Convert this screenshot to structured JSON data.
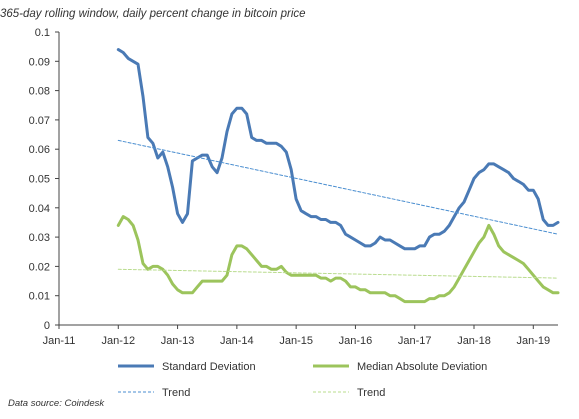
{
  "title": "365-day rolling window, daily percent change in bitcoin price",
  "source": "Data source: Coindesk",
  "chart_data": {
    "type": "line",
    "title": "365-day rolling window, daily percent change in bitcoin price",
    "xlabel": "",
    "ylabel": "",
    "x_ticks": [
      "Jan-11",
      "Jan-12",
      "Jan-13",
      "Jan-14",
      "Jan-15",
      "Jan-16",
      "Jan-17",
      "Jan-18",
      "Jan-19"
    ],
    "y_ticks": [
      "0",
      "0.01",
      "0.02",
      "0.03",
      "0.04",
      "0.05",
      "0.06",
      "0.07",
      "0.08",
      "0.09",
      "0.1"
    ],
    "ylim": [
      0,
      0.1
    ],
    "xlim": [
      "2011-01",
      "2019-06"
    ],
    "grid": false,
    "legend_position": "bottom",
    "series": [
      {
        "name": "Standard Deviation",
        "color": "#4a7ab5",
        "style": "solid",
        "points": [
          [
            "2012-01",
            0.094
          ],
          [
            "2012-02",
            0.093
          ],
          [
            "2012-03",
            0.091
          ],
          [
            "2012-04",
            0.09
          ],
          [
            "2012-05",
            0.089
          ],
          [
            "2012-06",
            0.078
          ],
          [
            "2012-07",
            0.064
          ],
          [
            "2012-08",
            0.062
          ],
          [
            "2012-09",
            0.057
          ],
          [
            "2012-10",
            0.059
          ],
          [
            "2012-11",
            0.054
          ],
          [
            "2012-12",
            0.047
          ],
          [
            "2013-01",
            0.038
          ],
          [
            "2013-02",
            0.035
          ],
          [
            "2013-03",
            0.038
          ],
          [
            "2013-04",
            0.056
          ],
          [
            "2013-05",
            0.057
          ],
          [
            "2013-06",
            0.058
          ],
          [
            "2013-07",
            0.058
          ],
          [
            "2013-08",
            0.054
          ],
          [
            "2013-09",
            0.052
          ],
          [
            "2013-10",
            0.057
          ],
          [
            "2013-11",
            0.066
          ],
          [
            "2013-12",
            0.072
          ],
          [
            "2014-01",
            0.074
          ],
          [
            "2014-02",
            0.074
          ],
          [
            "2014-03",
            0.072
          ],
          [
            "2014-04",
            0.064
          ],
          [
            "2014-05",
            0.063
          ],
          [
            "2014-06",
            0.063
          ],
          [
            "2014-07",
            0.062
          ],
          [
            "2014-08",
            0.062
          ],
          [
            "2014-09",
            0.062
          ],
          [
            "2014-10",
            0.061
          ],
          [
            "2014-11",
            0.059
          ],
          [
            "2014-12",
            0.053
          ],
          [
            "2015-01",
            0.043
          ],
          [
            "2015-02",
            0.039
          ],
          [
            "2015-03",
            0.038
          ],
          [
            "2015-04",
            0.037
          ],
          [
            "2015-05",
            0.037
          ],
          [
            "2015-06",
            0.036
          ],
          [
            "2015-07",
            0.036
          ],
          [
            "2015-08",
            0.035
          ],
          [
            "2015-09",
            0.035
          ],
          [
            "2015-10",
            0.034
          ],
          [
            "2015-11",
            0.031
          ],
          [
            "2015-12",
            0.03
          ],
          [
            "2016-01",
            0.029
          ],
          [
            "2016-02",
            0.028
          ],
          [
            "2016-03",
            0.027
          ],
          [
            "2016-04",
            0.027
          ],
          [
            "2016-05",
            0.028
          ],
          [
            "2016-06",
            0.03
          ],
          [
            "2016-07",
            0.029
          ],
          [
            "2016-08",
            0.029
          ],
          [
            "2016-09",
            0.028
          ],
          [
            "2016-10",
            0.027
          ],
          [
            "2016-11",
            0.026
          ],
          [
            "2016-12",
            0.026
          ],
          [
            "2017-01",
            0.026
          ],
          [
            "2017-02",
            0.027
          ],
          [
            "2017-03",
            0.027
          ],
          [
            "2017-04",
            0.03
          ],
          [
            "2017-05",
            0.031
          ],
          [
            "2017-06",
            0.031
          ],
          [
            "2017-07",
            0.032
          ],
          [
            "2017-08",
            0.034
          ],
          [
            "2017-09",
            0.037
          ],
          [
            "2017-10",
            0.04
          ],
          [
            "2017-11",
            0.042
          ],
          [
            "2017-12",
            0.046
          ],
          [
            "2018-01",
            0.05
          ],
          [
            "2018-02",
            0.052
          ],
          [
            "2018-03",
            0.053
          ],
          [
            "2018-04",
            0.055
          ],
          [
            "2018-05",
            0.055
          ],
          [
            "2018-06",
            0.054
          ],
          [
            "2018-07",
            0.053
          ],
          [
            "2018-08",
            0.052
          ],
          [
            "2018-09",
            0.05
          ],
          [
            "2018-10",
            0.049
          ],
          [
            "2018-11",
            0.048
          ],
          [
            "2018-12",
            0.046
          ],
          [
            "2019-01",
            0.046
          ],
          [
            "2019-02",
            0.043
          ],
          [
            "2019-03",
            0.036
          ],
          [
            "2019-04",
            0.034
          ],
          [
            "2019-05",
            0.034
          ],
          [
            "2019-06",
            0.035
          ]
        ]
      },
      {
        "name": "Median Absolute Deviation",
        "color": "#9cc45c",
        "style": "solid",
        "points": [
          [
            "2012-01",
            0.034
          ],
          [
            "2012-02",
            0.037
          ],
          [
            "2012-03",
            0.036
          ],
          [
            "2012-04",
            0.034
          ],
          [
            "2012-05",
            0.029
          ],
          [
            "2012-06",
            0.021
          ],
          [
            "2012-07",
            0.019
          ],
          [
            "2012-08",
            0.02
          ],
          [
            "2012-09",
            0.02
          ],
          [
            "2012-10",
            0.019
          ],
          [
            "2012-11",
            0.017
          ],
          [
            "2012-12",
            0.014
          ],
          [
            "2013-01",
            0.012
          ],
          [
            "2013-02",
            0.011
          ],
          [
            "2013-03",
            0.011
          ],
          [
            "2013-04",
            0.011
          ],
          [
            "2013-05",
            0.013
          ],
          [
            "2013-06",
            0.015
          ],
          [
            "2013-07",
            0.015
          ],
          [
            "2013-08",
            0.015
          ],
          [
            "2013-09",
            0.015
          ],
          [
            "2013-10",
            0.015
          ],
          [
            "2013-11",
            0.017
          ],
          [
            "2013-12",
            0.024
          ],
          [
            "2014-01",
            0.027
          ],
          [
            "2014-02",
            0.027
          ],
          [
            "2014-03",
            0.026
          ],
          [
            "2014-04",
            0.024
          ],
          [
            "2014-05",
            0.022
          ],
          [
            "2014-06",
            0.02
          ],
          [
            "2014-07",
            0.02
          ],
          [
            "2014-08",
            0.019
          ],
          [
            "2014-09",
            0.019
          ],
          [
            "2014-10",
            0.02
          ],
          [
            "2014-11",
            0.018
          ],
          [
            "2014-12",
            0.017
          ],
          [
            "2015-01",
            0.017
          ],
          [
            "2015-02",
            0.017
          ],
          [
            "2015-03",
            0.017
          ],
          [
            "2015-04",
            0.017
          ],
          [
            "2015-05",
            0.017
          ],
          [
            "2015-06",
            0.016
          ],
          [
            "2015-07",
            0.016
          ],
          [
            "2015-08",
            0.015
          ],
          [
            "2015-09",
            0.016
          ],
          [
            "2015-10",
            0.016
          ],
          [
            "2015-11",
            0.015
          ],
          [
            "2015-12",
            0.013
          ],
          [
            "2016-01",
            0.013
          ],
          [
            "2016-02",
            0.012
          ],
          [
            "2016-03",
            0.012
          ],
          [
            "2016-04",
            0.011
          ],
          [
            "2016-05",
            0.011
          ],
          [
            "2016-06",
            0.011
          ],
          [
            "2016-07",
            0.011
          ],
          [
            "2016-08",
            0.01
          ],
          [
            "2016-09",
            0.01
          ],
          [
            "2016-10",
            0.009
          ],
          [
            "2016-11",
            0.008
          ],
          [
            "2016-12",
            0.008
          ],
          [
            "2017-01",
            0.008
          ],
          [
            "2017-02",
            0.008
          ],
          [
            "2017-03",
            0.008
          ],
          [
            "2017-04",
            0.009
          ],
          [
            "2017-05",
            0.009
          ],
          [
            "2017-06",
            0.01
          ],
          [
            "2017-07",
            0.01
          ],
          [
            "2017-08",
            0.011
          ],
          [
            "2017-09",
            0.013
          ],
          [
            "2017-10",
            0.016
          ],
          [
            "2017-11",
            0.019
          ],
          [
            "2017-12",
            0.022
          ],
          [
            "2018-01",
            0.025
          ],
          [
            "2018-02",
            0.028
          ],
          [
            "2018-03",
            0.03
          ],
          [
            "2018-04",
            0.034
          ],
          [
            "2018-05",
            0.031
          ],
          [
            "2018-06",
            0.027
          ],
          [
            "2018-07",
            0.025
          ],
          [
            "2018-08",
            0.024
          ],
          [
            "2018-09",
            0.023
          ],
          [
            "2018-10",
            0.022
          ],
          [
            "2018-11",
            0.021
          ],
          [
            "2018-12",
            0.019
          ],
          [
            "2019-01",
            0.017
          ],
          [
            "2019-02",
            0.015
          ],
          [
            "2019-03",
            0.013
          ],
          [
            "2019-04",
            0.012
          ],
          [
            "2019-05",
            0.011
          ],
          [
            "2019-06",
            0.011
          ]
        ]
      },
      {
        "name": "Trend",
        "color": "#4a8ed0",
        "style": "dashed",
        "points": [
          [
            "2012-01",
            0.063
          ],
          [
            "2019-06",
            0.031
          ]
        ]
      },
      {
        "name": "Trend",
        "color": "#b9dc8e",
        "style": "dashed",
        "points": [
          [
            "2012-01",
            0.019
          ],
          [
            "2019-06",
            0.016
          ]
        ]
      }
    ]
  }
}
